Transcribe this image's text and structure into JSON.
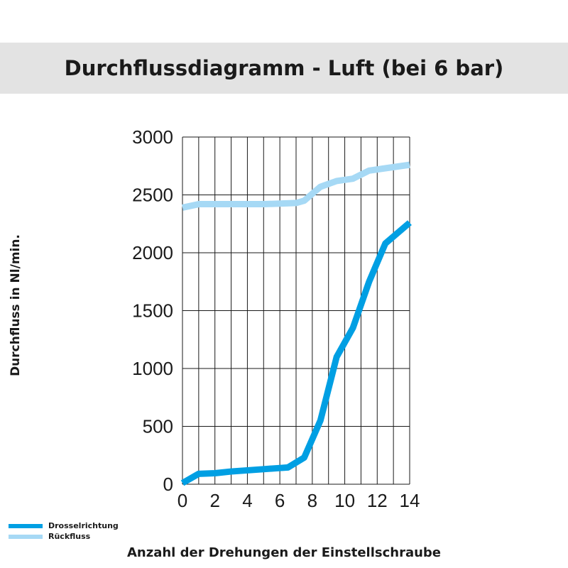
{
  "chart_data": {
    "type": "line",
    "title": "Durchflussdiagramm - Luft (bei 6 bar)",
    "xlabel": "Anzahl der Drehungen der Einstellschraube",
    "ylabel": "Durchfluss in Nl/min.",
    "xlim": [
      0,
      14
    ],
    "ylim": [
      0,
      3000
    ],
    "x_ticks": [
      0,
      2,
      4,
      6,
      8,
      10,
      12,
      14
    ],
    "y_ticks": [
      0,
      500,
      1000,
      1500,
      2000,
      2500,
      3000
    ],
    "grid": true,
    "legend_position": "bottom-left",
    "series": [
      {
        "name": "Drosselrichtung",
        "color": "#009fe3",
        "x": [
          0,
          1,
          2,
          3,
          4,
          5,
          6,
          6.5,
          7.5,
          8.5,
          9.5,
          10.5,
          11.5,
          12.5,
          14
        ],
        "y": [
          10,
          90,
          95,
          110,
          120,
          130,
          140,
          145,
          230,
          550,
          1100,
          1350,
          1750,
          2080,
          2260
        ]
      },
      {
        "name": "Rückfluss",
        "color": "#a6d9f5",
        "x": [
          0,
          1,
          2,
          3,
          4,
          5,
          6,
          7,
          7.5,
          8.5,
          9.5,
          10.5,
          11.5,
          12.5,
          14
        ],
        "y": [
          2390,
          2420,
          2420,
          2420,
          2420,
          2420,
          2425,
          2430,
          2450,
          2570,
          2620,
          2640,
          2710,
          2730,
          2760
        ]
      }
    ]
  }
}
